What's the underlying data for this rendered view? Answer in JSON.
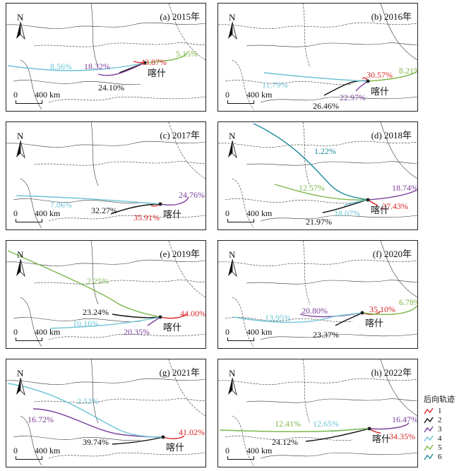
{
  "city": "喀什",
  "north_label": "N",
  "scale": {
    "zero": "0",
    "distance": "400 km"
  },
  "legend": {
    "title": "后向轨迹",
    "items": [
      {
        "label": "1",
        "color": "#d62728"
      },
      {
        "label": "2",
        "color": "#111111"
      },
      {
        "label": "3",
        "color": "#7b3f9a"
      },
      {
        "label": "4",
        "color": "#6cc3d5"
      },
      {
        "label": "5",
        "color": "#7ab648"
      },
      {
        "label": "6",
        "color": "#1b8a9a"
      }
    ]
  },
  "panels": [
    {
      "title": "(a) 2015年",
      "labels": {
        "1": "43.87%",
        "2": "24.10%",
        "3": "18.32%",
        "4": "8.56%",
        "5": "5.15%"
      }
    },
    {
      "title": "(b) 2016年",
      "labels": {
        "1": "30.57%",
        "2": "26.46%",
        "3": "22.97%",
        "4": "11.79%",
        "5": "8.21%"
      }
    },
    {
      "title": "(c) 2017年",
      "labels": {
        "1": "35.91%",
        "2": "32.27%",
        "3": "24.76%",
        "4": "7.06%"
      }
    },
    {
      "title": "(d) 2018年",
      "labels": {
        "1": "27.43%",
        "2": "21.97%",
        "3": "18.74%",
        "4": "18.07%",
        "5": "12.57%",
        "6": "1.22%"
      }
    },
    {
      "title": "(e) 2019年",
      "labels": {
        "1": "44.00%",
        "2": "23.24%",
        "3": "20.35%",
        "4": "10.16%",
        "5": "2.25%"
      }
    },
    {
      "title": "(f) 2020年",
      "labels": {
        "1": "35.10%",
        "2": "23.37%",
        "3": "20.80%",
        "4": "13.95%",
        "5": "6.78%"
      }
    },
    {
      "title": "(g) 2021年",
      "labels": {
        "1": "41.02%",
        "2": "39.74%",
        "3": "16.72%",
        "4": "2.52%"
      }
    },
    {
      "title": "(h) 2022年",
      "labels": {
        "1": "34.35%",
        "2": "24.12%",
        "3": "16.47%",
        "4": "12.65%",
        "5": "12.41%"
      }
    }
  ]
}
